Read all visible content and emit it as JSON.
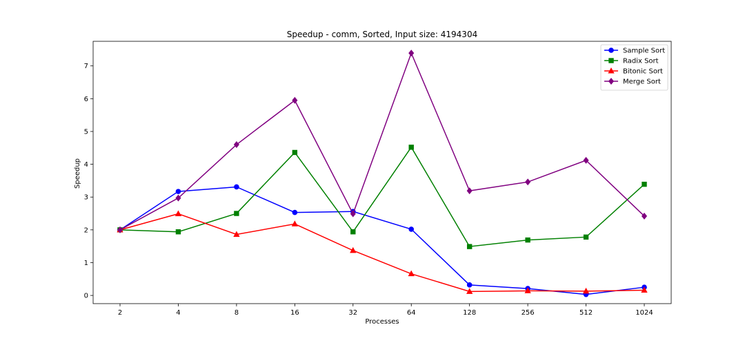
{
  "chart_data": {
    "type": "line",
    "title": "Speedup - comm, Sorted, Input size: 4194304",
    "xlabel": "Processes",
    "ylabel": "Speedup",
    "categories": [
      "2",
      "4",
      "8",
      "16",
      "32",
      "64",
      "128",
      "256",
      "512",
      "1024"
    ],
    "ylim": [
      -0.25,
      7.75
    ],
    "yticks": [
      "0",
      "1",
      "2",
      "3",
      "4",
      "5",
      "6",
      "7"
    ],
    "grid": false,
    "legend_position": "top-right",
    "series": [
      {
        "name": "Sample Sort",
        "color": "#0000ff",
        "marker": "circle",
        "values": [
          2.0,
          3.17,
          3.31,
          2.53,
          2.56,
          2.02,
          0.32,
          0.21,
          0.03,
          0.25
        ]
      },
      {
        "name": "Radix Sort",
        "color": "#008000",
        "marker": "square",
        "values": [
          2.0,
          1.94,
          2.5,
          4.36,
          1.94,
          4.52,
          1.49,
          1.69,
          1.78,
          3.39
        ]
      },
      {
        "name": "Bitonic Sort",
        "color": "#ff0000",
        "marker": "triangle",
        "values": [
          2.0,
          2.49,
          1.86,
          2.18,
          1.37,
          0.66,
          0.12,
          0.14,
          0.13,
          0.16
        ]
      },
      {
        "name": "Merge Sort",
        "color": "#800080",
        "marker": "diamond",
        "values": [
          2.0,
          2.97,
          4.6,
          5.95,
          2.49,
          7.39,
          3.19,
          3.46,
          4.12,
          2.42
        ]
      }
    ]
  }
}
